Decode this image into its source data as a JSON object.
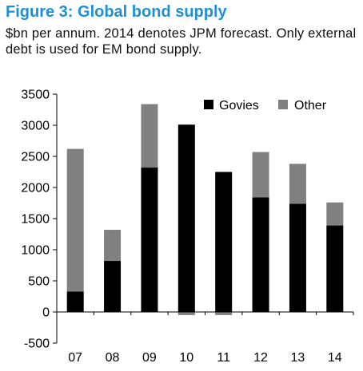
{
  "figure": {
    "title": "Figure 3: Global bond supply",
    "subtitle": "$bn per annum. 2014 denotes JPM forecast. Only external debt is used for EM bond supply."
  },
  "chart_data": {
    "type": "bar",
    "stacked": true,
    "categories": [
      "07",
      "08",
      "09",
      "10",
      "11",
      "12",
      "13",
      "14"
    ],
    "series": [
      {
        "name": "Govies",
        "color": "#000000",
        "values": [
          330,
          820,
          2320,
          3010,
          2250,
          1840,
          1740,
          1390
        ]
      },
      {
        "name": "Other",
        "color": "#808080",
        "values": [
          2290,
          500,
          1020,
          -50,
          -50,
          730,
          640,
          370
        ]
      }
    ],
    "title": "",
    "xlabel": "",
    "ylabel": "",
    "ylim": [
      -500,
      3500
    ],
    "yticks": [
      -500,
      0,
      500,
      1000,
      1500,
      2000,
      2500,
      3000,
      3500
    ],
    "ytick_labels": [
      "-500",
      "0",
      "500",
      "1000",
      "1500",
      "2000",
      "2500",
      "3000",
      "3500"
    ],
    "grid": false,
    "legend_position": "top-right"
  }
}
